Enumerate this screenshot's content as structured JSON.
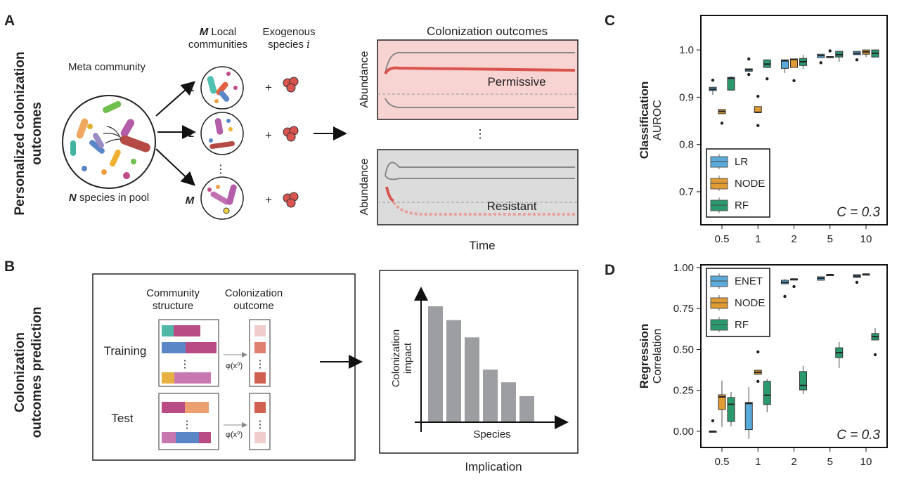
{
  "panel_a": {
    "letter": "A",
    "side_title": [
      "Personalized colonization",
      "outcomes"
    ],
    "meta_label": "Meta community",
    "pool_label_var": "N",
    "pool_label": " species in pool",
    "local_var": "M",
    "local_title": [
      " Local",
      "communities"
    ],
    "exo_title": [
      "Exogenous",
      "species "
    ],
    "exo_var": "i",
    "community_labels": [
      "1",
      "2",
      "M"
    ],
    "plus": "+",
    "outcomes_title": "Colonization outcomes",
    "abundance_label": "Abundance",
    "permissive_label": "Permissive",
    "resistant_label": "Resistant",
    "time_label": "Time",
    "ellipsis": "⋮",
    "colors": {
      "permissive_bg": "#f7d3d1",
      "resistant_bg": "#dcdcdc",
      "invader": "#d9534f"
    }
  },
  "panel_b": {
    "letter": "B",
    "side_title": [
      "Colonization",
      "outcomes prediction"
    ],
    "structure_header": [
      "Community",
      "structure"
    ],
    "outcome_header": [
      "Colonization",
      "outcome"
    ],
    "training_label": "Training",
    "test_label": "Test",
    "phi_label": "φ(x⁰)",
    "implication_label": "Implication",
    "impact_label": [
      "Colonization",
      "impact"
    ],
    "species_label": "Species",
    "impact_bars": [
      1.0,
      0.88,
      0.73,
      0.45,
      0.34,
      0.22
    ]
  },
  "chart_data": [
    {
      "letter": "C",
      "type": "box",
      "ylabel_bold": "Classification",
      "ylabel": "AUROC",
      "annotation": "C = 0.3",
      "categories": [
        "0.5",
        "1",
        "2",
        "5",
        "10"
      ],
      "yticks": [
        "0.7",
        "0.8",
        "0.9",
        "1.0"
      ],
      "ytick_values": [
        0.7,
        0.8,
        0.9,
        1.0
      ],
      "ylim": [
        0.63,
        1.073
      ],
      "legend_placement": "bottom-left",
      "series": [
        {
          "name": "LR",
          "color": "#5aabdc",
          "boxes": [
            {
              "lo": 0.905,
              "q1": 0.914,
              "med": 0.917,
              "q3": 0.921,
              "hi": 0.922,
              "out": [
                0.936
              ]
            },
            {
              "lo": 0.955,
              "q1": 0.955,
              "med": 0.958,
              "q3": 0.96,
              "hi": 0.96,
              "out": [
                0.981,
                0.948
              ]
            },
            {
              "lo": 0.951,
              "q1": 0.961,
              "med": 0.977,
              "q3": 0.979,
              "hi": 0.98,
              "out": []
            },
            {
              "lo": 0.984,
              "q1": 0.984,
              "med": 0.988,
              "q3": 0.991,
              "hi": 0.991,
              "out": [
                0.973
              ]
            },
            {
              "lo": 0.99,
              "q1": 0.99,
              "med": 0.993,
              "q3": 0.997,
              "hi": 0.997,
              "out": [
                0.979
              ]
            }
          ]
        },
        {
          "name": "NODE",
          "color": "#e09b32",
          "boxes": [
            {
              "lo": 0.865,
              "q1": 0.865,
              "med": 0.87,
              "q3": 0.874,
              "hi": 0.874,
              "out": [
                0.845
              ]
            },
            {
              "lo": 0.868,
              "q1": 0.868,
              "med": 0.868,
              "q3": 0.88,
              "hi": 0.88,
              "out": [
                0.902,
                0.84
              ]
            },
            {
              "lo": 0.963,
              "q1": 0.963,
              "med": 0.98,
              "q3": 0.981,
              "hi": 0.981,
              "out": [
                0.935
              ]
            },
            {
              "lo": 0.985,
              "q1": 0.985,
              "med": 0.985,
              "q3": 0.986,
              "hi": 0.986,
              "out": [
                0.998
              ]
            },
            {
              "lo": 0.985,
              "q1": 0.991,
              "med": 0.996,
              "q3": 1.0,
              "hi": 1.0,
              "out": []
            }
          ]
        },
        {
          "name": "RF",
          "color": "#2a9a6e",
          "boxes": [
            {
              "lo": 0.915,
              "q1": 0.915,
              "med": 0.94,
              "q3": 0.942,
              "hi": 0.944,
              "out": []
            },
            {
              "lo": 0.963,
              "q1": 0.963,
              "med": 0.97,
              "q3": 0.979,
              "hi": 0.98,
              "out": [
                0.939
              ]
            },
            {
              "lo": 0.96,
              "q1": 0.967,
              "med": 0.975,
              "q3": 0.982,
              "hi": 0.99,
              "out": []
            },
            {
              "lo": 0.975,
              "q1": 0.985,
              "med": 0.99,
              "q3": 0.997,
              "hi": 0.998,
              "out": []
            },
            {
              "lo": 0.985,
              "q1": 0.985,
              "med": 0.993,
              "q3": 1.0,
              "hi": 1.0,
              "out": []
            }
          ]
        }
      ]
    },
    {
      "letter": "D",
      "type": "box",
      "ylabel_bold": "Regression",
      "ylabel": "Correlation",
      "annotation": "C = 0.3",
      "categories": [
        "0.5",
        "1",
        "2",
        "5",
        "10"
      ],
      "yticks": [
        "0.00",
        "0.25",
        "0.50",
        "0.75",
        "1.00"
      ],
      "ytick_values": [
        0.0,
        0.25,
        0.5,
        0.75,
        1.0
      ],
      "ylim": [
        -0.099,
        1.017
      ],
      "legend_placement": "top-left",
      "series": [
        {
          "name": "ENET",
          "color": "#5aabdc",
          "boxes": [
            {
              "lo": 0.0,
              "q1": 0.0,
              "med": 0.0,
              "q3": 0.0,
              "hi": 0.0,
              "out": [
                0.064
              ]
            },
            {
              "lo": -0.047,
              "q1": 0.01,
              "med": 0.17,
              "q3": 0.176,
              "hi": 0.27,
              "out": []
            },
            {
              "lo": 0.901,
              "q1": 0.901,
              "med": 0.91,
              "q3": 0.923,
              "hi": 0.93,
              "out": [
                0.824
              ]
            },
            {
              "lo": 0.923,
              "q1": 0.923,
              "med": 0.935,
              "q3": 0.944,
              "hi": 0.944,
              "out": []
            },
            {
              "lo": 0.94,
              "q1": 0.94,
              "med": 0.948,
              "q3": 0.957,
              "hi": 0.957,
              "out": [
                0.91
              ]
            }
          ]
        },
        {
          "name": "NODE",
          "color": "#e09b32",
          "boxes": [
            {
              "lo": 0.026,
              "q1": 0.133,
              "med": 0.21,
              "q3": 0.223,
              "hi": 0.31,
              "out": []
            },
            {
              "lo": 0.348,
              "q1": 0.348,
              "med": 0.36,
              "q3": 0.373,
              "hi": 0.373,
              "out": [
                0.485,
                0.305
              ]
            },
            {
              "lo": 0.93,
              "q1": 0.93,
              "med": 0.93,
              "q3": 0.93,
              "hi": 0.93,
              "out": [
                0.884
              ]
            },
            {
              "lo": 0.957,
              "q1": 0.957,
              "med": 0.957,
              "q3": 0.957,
              "hi": 0.957,
              "out": []
            },
            {
              "lo": 0.96,
              "q1": 0.96,
              "med": 0.96,
              "q3": 0.96,
              "hi": 0.96,
              "out": []
            }
          ]
        },
        {
          "name": "RF",
          "color": "#2a9a6e",
          "boxes": [
            {
              "lo": 0.03,
              "q1": 0.06,
              "med": 0.165,
              "q3": 0.206,
              "hi": 0.24,
              "out": []
            },
            {
              "lo": 0.116,
              "q1": 0.163,
              "med": 0.22,
              "q3": 0.305,
              "hi": 0.32,
              "out": []
            },
            {
              "lo": 0.227,
              "q1": 0.253,
              "med": 0.28,
              "q3": 0.365,
              "hi": 0.4,
              "out": []
            },
            {
              "lo": 0.386,
              "q1": 0.45,
              "med": 0.48,
              "q3": 0.51,
              "hi": 0.545,
              "out": []
            },
            {
              "lo": 0.558,
              "q1": 0.558,
              "med": 0.578,
              "q3": 0.597,
              "hi": 0.63,
              "out": [
                0.468
              ]
            }
          ]
        }
      ]
    }
  ]
}
